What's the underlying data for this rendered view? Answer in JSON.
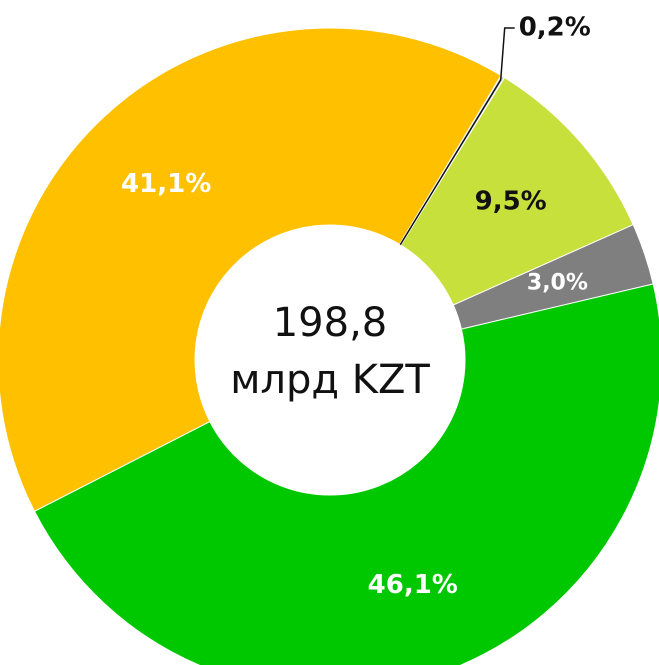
{
  "chart_data": {
    "type": "donut",
    "categories": [
      null,
      null,
      null,
      null,
      null
    ],
    "values": [
      0.2,
      9.5,
      3.0,
      46.1,
      41.1
    ],
    "value_labels": [
      "0,2%",
      "9,5%",
      "3,0%",
      "46,1%",
      "41,1%"
    ],
    "colors": [
      "#d9d9d9",
      "#c8e03c",
      "#7f7f7f",
      "#00c800",
      "#ffc000"
    ],
    "label_colors": [
      "#111111",
      "#111111",
      "#ffffff",
      "#ffffff",
      "#ffffff"
    ],
    "center_text": [
      "198,8",
      "млрд KZT"
    ]
  }
}
